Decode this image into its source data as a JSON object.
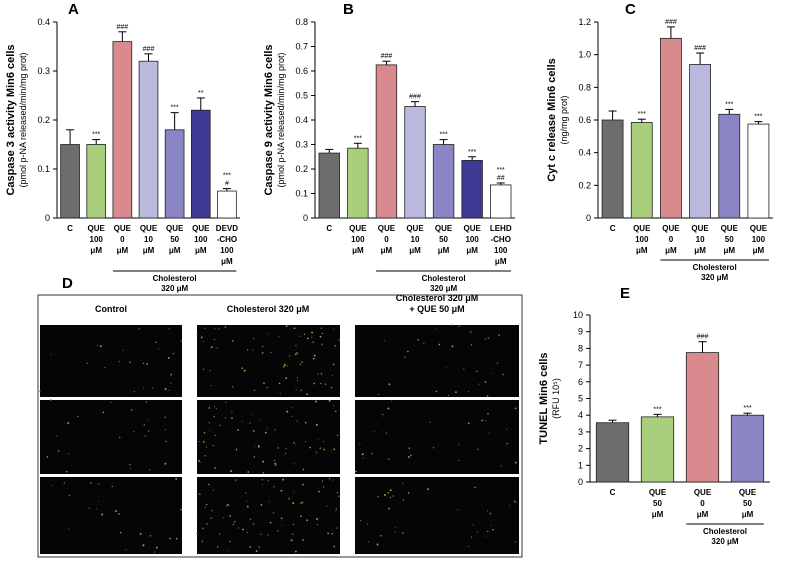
{
  "chart_data": [
    {
      "type": "bar",
      "panel": "A",
      "ylabel": "Caspase 3 activity Min6 cells",
      "ylabel_sub": "(pmol p-NA released/min/mg prot)",
      "categories": [
        [
          "C"
        ],
        [
          "QUE",
          "100",
          "μM"
        ],
        [
          "QUE",
          "0",
          "μM"
        ],
        [
          "QUE",
          "10",
          "μM"
        ],
        [
          "QUE",
          "50",
          "μM"
        ],
        [
          "QUE",
          "100",
          "μM"
        ],
        [
          "DEVD",
          "-CHO",
          "100",
          "μM"
        ]
      ],
      "values": [
        0.15,
        0.15,
        0.36,
        0.32,
        0.18,
        0.22,
        0.055
      ],
      "errors": [
        0.03,
        0.01,
        0.02,
        0.015,
        0.035,
        0.025,
        0.005
      ],
      "colors": [
        "#6d6d6d",
        "#a9cf7d",
        "#d98a8f",
        "#b8b9dd",
        "#8a85c5",
        "#3e3a94",
        "#ffffff"
      ],
      "annotations": [
        null,
        [
          "***"
        ],
        [
          "###"
        ],
        [
          "###"
        ],
        [
          "***"
        ],
        [
          "**"
        ],
        [
          "***",
          "#"
        ]
      ],
      "group": {
        "label": [
          "Cholesterol",
          "320 μM"
        ],
        "first": 2,
        "last": 6
      },
      "ylim": [
        0,
        0.4
      ],
      "yticks": [
        0,
        0.1,
        0.2,
        0.3,
        0.4
      ]
    },
    {
      "type": "bar",
      "panel": "B",
      "ylabel": "Caspase 9 activity Min6 cells",
      "ylabel_sub": "(pmol p-NA released/min/mg prot)",
      "categories": [
        [
          "C"
        ],
        [
          "QUE",
          "100",
          "μM"
        ],
        [
          "QUE",
          "0",
          "μM"
        ],
        [
          "QUE",
          "10",
          "μM"
        ],
        [
          "QUE",
          "50",
          "μM"
        ],
        [
          "QUE",
          "100",
          "μM"
        ],
        [
          "LEHD",
          "-CHO",
          "100",
          "μM"
        ]
      ],
      "values": [
        0.265,
        0.285,
        0.625,
        0.455,
        0.3,
        0.235,
        0.135
      ],
      "errors": [
        0.015,
        0.02,
        0.015,
        0.02,
        0.02,
        0.015,
        0.008
      ],
      "colors": [
        "#6d6d6d",
        "#a9cf7d",
        "#d98a8f",
        "#b8b9dd",
        "#8a85c5",
        "#3e3a94",
        "#ffffff"
      ],
      "annotations": [
        null,
        [
          "***"
        ],
        [
          "###"
        ],
        [
          "###"
        ],
        [
          "***"
        ],
        [
          "***"
        ],
        [
          "***",
          "##"
        ]
      ],
      "group": {
        "label": [
          "Cholesterol",
          "320 μM"
        ],
        "first": 2,
        "last": 6
      },
      "ylim": [
        0,
        0.8
      ],
      "yticks": [
        0,
        0.1,
        0.2,
        0.3,
        0.4,
        0.5,
        0.6,
        0.7,
        0.8
      ]
    },
    {
      "type": "bar",
      "panel": "C",
      "ylabel": "Cyt c release Min6 cells",
      "ylabel_sub": "(ng/mg prot)",
      "categories": [
        [
          "C"
        ],
        [
          "QUE",
          "100",
          "μM"
        ],
        [
          "QUE",
          "0",
          "μM"
        ],
        [
          "QUE",
          "10",
          "μM"
        ],
        [
          "QUE",
          "50",
          "μM"
        ],
        [
          "QUE",
          "100",
          "μM"
        ]
      ],
      "values": [
        0.6,
        0.585,
        1.1,
        0.94,
        0.635,
        0.575
      ],
      "errors": [
        0.055,
        0.02,
        0.07,
        0.07,
        0.03,
        0.015
      ],
      "colors": [
        "#6d6d6d",
        "#a9cf7d",
        "#d98a8f",
        "#b8b9dd",
        "#8a85c5",
        "#ffffff"
      ],
      "annotations": [
        null,
        [
          "***"
        ],
        [
          "###"
        ],
        [
          "###"
        ],
        [
          "***"
        ],
        [
          "***"
        ]
      ],
      "group": {
        "label": [
          "Cholesterol",
          "320 μM"
        ],
        "first": 2,
        "last": 5
      },
      "ylim": [
        0,
        1.2
      ],
      "yticks": [
        0,
        0.2,
        0.4,
        0.6,
        0.8,
        {
          "value": 1,
          "label": "1.0"
        },
        1.2
      ]
    },
    {
      "type": "bar",
      "panel": "E",
      "ylabel": "TUNEL Min6 cells",
      "ylabel_sub": "(RFU 10⁵)",
      "categories": [
        [
          "C"
        ],
        [
          "QUE",
          "50",
          "μM"
        ],
        [
          "QUE",
          "0",
          "μM"
        ],
        [
          "QUE",
          "50",
          "μM"
        ]
      ],
      "values": [
        3.55,
        3.9,
        7.75,
        4.0
      ],
      "errors": [
        0.15,
        0.15,
        0.65,
        0.12
      ],
      "colors": [
        "#6d6d6d",
        "#a9cf7d",
        "#d98a8f",
        "#8a85c5"
      ],
      "annotations": [
        null,
        [
          "***"
        ],
        [
          "###"
        ],
        [
          "***"
        ]
      ],
      "group": {
        "label": [
          "Cholesterol",
          "320 μM"
        ],
        "first": 2,
        "last": 3
      },
      "ylim": [
        0,
        10
      ],
      "yticks": [
        0,
        1,
        2,
        3,
        4,
        5,
        6,
        7,
        8,
        9,
        10
      ]
    }
  ],
  "panel_d": {
    "label": "D",
    "columns": [
      [
        "Control"
      ],
      [
        "Cholesterol 320 μM"
      ],
      [
        "Cholesterol 320 μM",
        "+ QUE 50 μM"
      ]
    ]
  }
}
